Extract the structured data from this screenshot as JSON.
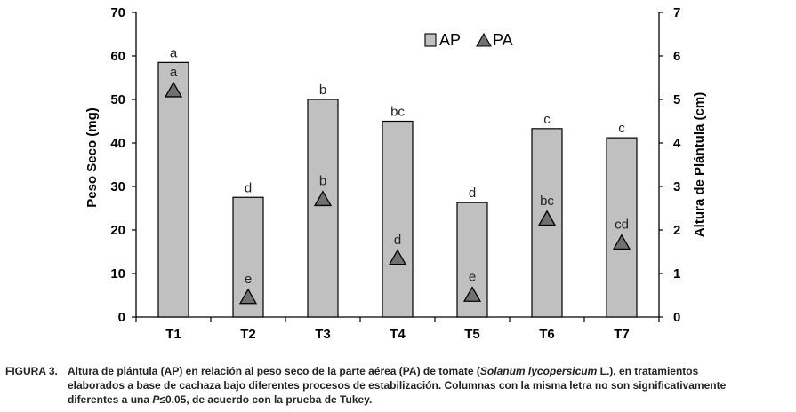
{
  "chart_data": {
    "type": "bar",
    "categories": [
      "T1",
      "T2",
      "T3",
      "T4",
      "T5",
      "T6",
      "T7"
    ],
    "series": [
      {
        "name": "AP",
        "mark": "bar",
        "axis": "right",
        "values": [
          5.85,
          2.75,
          5.0,
          4.5,
          2.63,
          4.33,
          4.12
        ],
        "labels": [
          "a",
          "d",
          "b",
          "bc",
          "d",
          "c",
          "c"
        ]
      },
      {
        "name": "PA",
        "mark": "triangle",
        "axis": "left",
        "values": [
          52,
          4.5,
          27,
          13.5,
          5,
          22.5,
          17
        ],
        "labels": [
          "a",
          "e",
          "b",
          "d",
          "e",
          "bc",
          "cd"
        ]
      }
    ],
    "y_left": {
      "label": "Peso Seco (mg)",
      "lim": [
        0,
        70
      ],
      "ticks": [
        "0",
        "10",
        "20",
        "30",
        "40",
        "50",
        "60",
        "70"
      ]
    },
    "y_right": {
      "label": "Altura de Plántula (cm)",
      "lim": [
        0,
        7
      ],
      "ticks": [
        "0",
        "1",
        "2",
        "3",
        "4",
        "5",
        "6",
        "7"
      ]
    },
    "legend_position": "top-right",
    "grid": false,
    "colors": {
      "bar_fill": "#c0c0c0",
      "marker_fill": "#707070",
      "outline": "#000000"
    }
  },
  "caption": {
    "lead": "FIGURA 3.",
    "line1_a": "Altura de plántula (AP) en relación al peso seco de la parte aérea (PA)  de tomate (",
    "line1_italic": "Solanum lycopersicum",
    "line1_b": " L.), en tratamientos",
    "line2": "elaborados a base de cachaza bajo diferentes procesos de estabilización. Columnas con la misma letra no son significativamente",
    "line3_a": "diferentes a una ",
    "line3_italic": "P",
    "line3_b": "≤0.05, de acuerdo con la prueba de Tukey."
  }
}
